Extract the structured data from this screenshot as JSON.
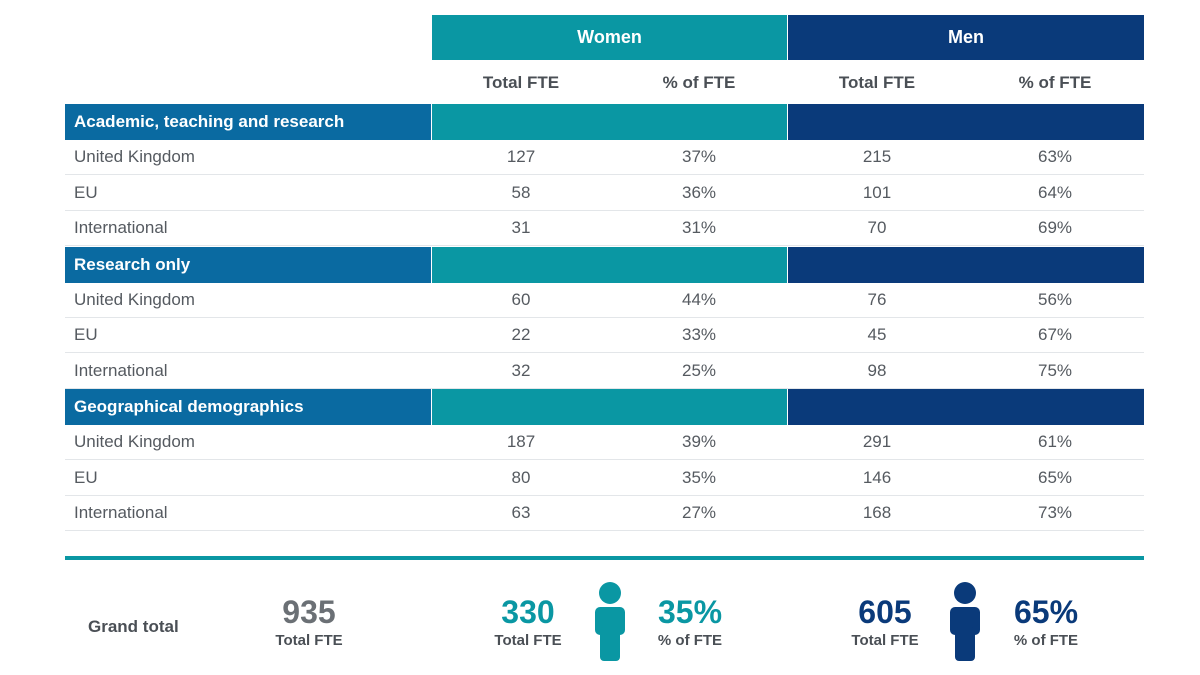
{
  "header": {
    "women": "Women",
    "men": "Men",
    "total_fte": "Total FTE",
    "pct_fte": "% of FTE"
  },
  "sections": [
    {
      "title": "Academic, teaching and research",
      "rows": [
        {
          "name": "United Kingdom",
          "w_fte": "127",
          "w_pct": "37%",
          "m_fte": "215",
          "m_pct": "63%"
        },
        {
          "name": "EU",
          "w_fte": "58",
          "w_pct": "36%",
          "m_fte": "101",
          "m_pct": "64%"
        },
        {
          "name": "International",
          "w_fte": "31",
          "w_pct": "31%",
          "m_fte": "70",
          "m_pct": "69%"
        }
      ]
    },
    {
      "title": "Research only",
      "rows": [
        {
          "name": "United Kingdom",
          "w_fte": "60",
          "w_pct": "44%",
          "m_fte": "76",
          "m_pct": "56%"
        },
        {
          "name": "EU",
          "w_fte": "22",
          "w_pct": "33%",
          "m_fte": "45",
          "m_pct": "67%"
        },
        {
          "name": "International",
          "w_fte": "32",
          "w_pct": "25%",
          "m_fte": "98",
          "m_pct": "75%"
        }
      ]
    },
    {
      "title": "Geographical demographics",
      "rows": [
        {
          "name": "United Kingdom",
          "w_fte": "187",
          "w_pct": "39%",
          "m_fte": "291",
          "m_pct": "61%"
        },
        {
          "name": "EU",
          "w_fte": "80",
          "w_pct": "35%",
          "m_fte": "146",
          "m_pct": "65%"
        },
        {
          "name": "International",
          "w_fte": "63",
          "w_pct": "27%",
          "m_fte": "168",
          "m_pct": "73%"
        }
      ]
    }
  ],
  "grand_total": {
    "label": "Grand total",
    "total": "935",
    "total_caption": "Total FTE",
    "women_total": "330",
    "women_total_caption": "Total FTE",
    "women_pct": "35%",
    "women_pct_caption": "% of FTE",
    "men_total": "605",
    "men_total_caption": "Total FTE",
    "men_pct": "65%",
    "men_pct_caption": "% of FTE"
  },
  "colors": {
    "women": "#0a97a3",
    "men": "#0a3a7a",
    "section": "#0a6aa1"
  },
  "icons": {
    "women": "person-icon",
    "men": "person-icon"
  }
}
